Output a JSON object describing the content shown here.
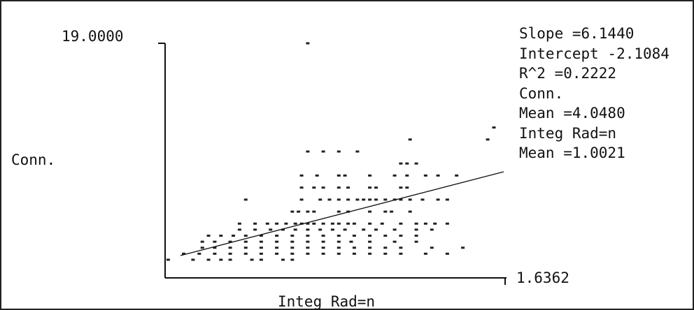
{
  "chart_data": {
    "type": "scatter",
    "xlabel": "Integ Rad=n",
    "ylabel": "Conn.",
    "y_top_label": "19.0000",
    "x_max_label": "1.6362",
    "xlim": [
      0.54,
      1.6362
    ],
    "ylim": [
      1.0,
      19.0
    ],
    "grid": false,
    "stats": [
      "Slope =6.1440",
      "Intercept -2.1084",
      "R^2 =0.2222",
      "Conn.",
      "Mean =4.0480",
      "Integ Rad=n",
      "Mean =1.0021"
    ],
    "regression": {
      "slope": 6.144,
      "intercept": -2.1084,
      "x_range": [
        0.6,
        1.6
      ]
    },
    "points": [
      [
        1.0,
        19
      ],
      [
        1.58,
        11
      ],
      [
        1.6,
        12
      ],
      [
        1.0,
        10
      ],
      [
        1.05,
        10
      ],
      [
        1.1,
        10
      ],
      [
        1.16,
        10
      ],
      [
        1.33,
        11
      ],
      [
        1.3,
        9
      ],
      [
        1.32,
        9
      ],
      [
        1.35,
        9
      ],
      [
        0.98,
        8
      ],
      [
        1.03,
        8
      ],
      [
        1.1,
        8
      ],
      [
        1.12,
        8
      ],
      [
        1.2,
        8
      ],
      [
        1.28,
        8
      ],
      [
        1.32,
        8
      ],
      [
        1.38,
        8
      ],
      [
        1.42,
        8
      ],
      [
        1.48,
        8
      ],
      [
        0.98,
        7
      ],
      [
        1.02,
        7
      ],
      [
        1.05,
        7
      ],
      [
        1.1,
        7
      ],
      [
        1.13,
        7
      ],
      [
        1.2,
        7
      ],
      [
        1.22,
        7
      ],
      [
        1.3,
        7
      ],
      [
        1.32,
        7
      ],
      [
        0.8,
        6
      ],
      [
        0.98,
        6
      ],
      [
        1.04,
        6
      ],
      [
        1.07,
        6
      ],
      [
        1.1,
        6
      ],
      [
        1.13,
        6
      ],
      [
        1.16,
        6
      ],
      [
        1.18,
        6
      ],
      [
        1.2,
        6
      ],
      [
        1.22,
        6
      ],
      [
        1.25,
        6
      ],
      [
        1.28,
        6
      ],
      [
        1.3,
        6
      ],
      [
        1.33,
        6
      ],
      [
        1.37,
        6
      ],
      [
        1.42,
        6
      ],
      [
        1.45,
        6
      ],
      [
        0.95,
        5
      ],
      [
        0.97,
        5
      ],
      [
        1.0,
        5
      ],
      [
        1.02,
        5
      ],
      [
        1.1,
        5
      ],
      [
        1.13,
        5
      ],
      [
        1.2,
        5
      ],
      [
        1.25,
        5
      ],
      [
        1.27,
        5
      ],
      [
        1.33,
        5
      ],
      [
        0.78,
        4
      ],
      [
        0.83,
        4
      ],
      [
        0.87,
        4
      ],
      [
        0.9,
        4
      ],
      [
        0.93,
        4
      ],
      [
        0.96,
        4
      ],
      [
        0.98,
        4
      ],
      [
        1.0,
        4
      ],
      [
        1.02,
        4
      ],
      [
        1.05,
        4
      ],
      [
        1.08,
        4
      ],
      [
        1.1,
        4
      ],
      [
        1.13,
        4
      ],
      [
        1.15,
        4
      ],
      [
        1.2,
        4
      ],
      [
        1.24,
        4
      ],
      [
        1.3,
        4
      ],
      [
        1.35,
        4
      ],
      [
        1.38,
        4
      ],
      [
        1.41,
        4
      ],
      [
        1.45,
        4
      ],
      [
        0.78,
        3.5
      ],
      [
        0.83,
        3.5
      ],
      [
        0.88,
        3.5
      ],
      [
        0.92,
        3.5
      ],
      [
        0.96,
        3.5
      ],
      [
        1.0,
        3.5
      ],
      [
        1.04,
        3.5
      ],
      [
        1.08,
        3.5
      ],
      [
        1.12,
        3.5
      ],
      [
        1.18,
        3.5
      ],
      [
        1.22,
        3.5
      ],
      [
        1.28,
        3.5
      ],
      [
        1.35,
        3.5
      ],
      [
        1.4,
        3.5
      ],
      [
        0.68,
        3
      ],
      [
        0.72,
        3
      ],
      [
        0.76,
        3
      ],
      [
        0.8,
        3
      ],
      [
        0.85,
        3
      ],
      [
        0.9,
        3
      ],
      [
        0.95,
        3
      ],
      [
        1.0,
        3
      ],
      [
        1.05,
        3
      ],
      [
        1.1,
        3
      ],
      [
        1.15,
        3
      ],
      [
        1.2,
        3
      ],
      [
        1.25,
        3
      ],
      [
        1.3,
        3
      ],
      [
        1.35,
        3
      ],
      [
        0.66,
        2.5
      ],
      [
        0.7,
        2.5
      ],
      [
        0.75,
        2.5
      ],
      [
        0.8,
        2.5
      ],
      [
        0.85,
        2.5
      ],
      [
        0.9,
        2.5
      ],
      [
        0.95,
        2.5
      ],
      [
        1.0,
        2.5
      ],
      [
        1.05,
        2.5
      ],
      [
        1.1,
        2.5
      ],
      [
        1.14,
        2.5
      ],
      [
        1.2,
        2.5
      ],
      [
        1.28,
        2.5
      ],
      [
        1.35,
        2.5
      ],
      [
        0.66,
        2
      ],
      [
        0.7,
        2
      ],
      [
        0.75,
        2
      ],
      [
        0.8,
        2
      ],
      [
        0.85,
        2
      ],
      [
        0.9,
        2
      ],
      [
        0.95,
        2
      ],
      [
        1.0,
        2
      ],
      [
        1.05,
        2
      ],
      [
        1.1,
        2
      ],
      [
        1.15,
        2
      ],
      [
        1.2,
        2
      ],
      [
        1.25,
        2
      ],
      [
        1.3,
        2
      ],
      [
        1.4,
        2
      ],
      [
        1.5,
        2
      ],
      [
        0.6,
        1.5
      ],
      [
        0.65,
        1.5
      ],
      [
        0.7,
        1.5
      ],
      [
        0.75,
        1.5
      ],
      [
        0.8,
        1.5
      ],
      [
        0.85,
        1.5
      ],
      [
        0.9,
        1.5
      ],
      [
        0.95,
        1.5
      ],
      [
        1.0,
        1.5
      ],
      [
        1.05,
        1.5
      ],
      [
        1.1,
        1.5
      ],
      [
        1.15,
        1.5
      ],
      [
        1.2,
        1.5
      ],
      [
        1.25,
        1.5
      ],
      [
        1.3,
        1.5
      ],
      [
        1.38,
        1.5
      ],
      [
        1.45,
        1.5
      ],
      [
        0.55,
        1
      ],
      [
        0.63,
        1
      ],
      [
        0.68,
        1
      ],
      [
        0.72,
        1
      ],
      [
        0.75,
        1
      ],
      [
        0.82,
        1
      ],
      [
        0.85,
        1
      ],
      [
        0.92,
        1
      ],
      [
        0.95,
        1
      ]
    ]
  }
}
